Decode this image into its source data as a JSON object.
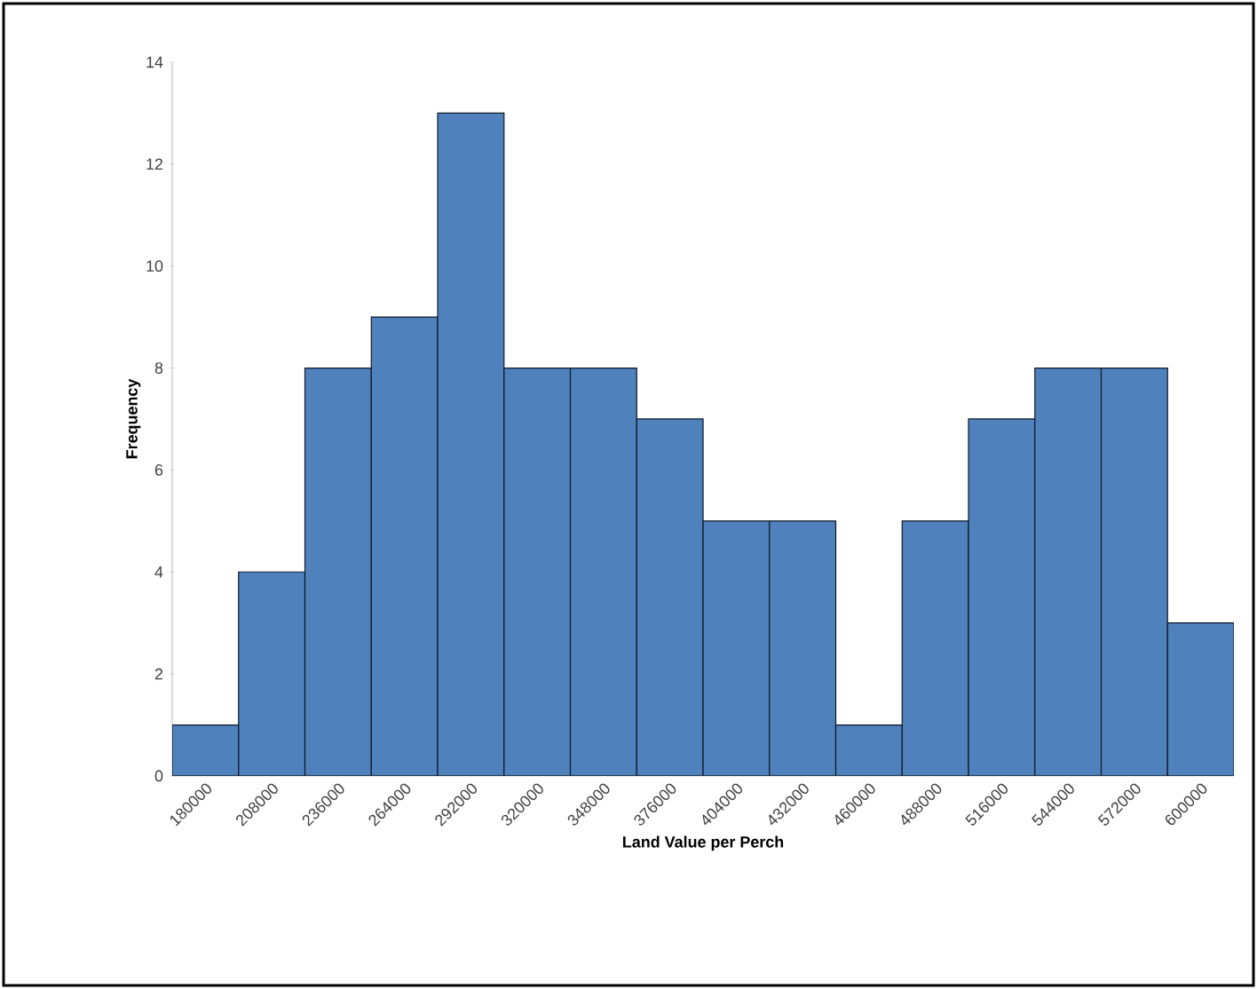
{
  "chart_data": {
    "type": "bar",
    "xlabel": "Land Value per Perch",
    "ylabel": "Frequency",
    "categories": [
      "180000",
      "208000",
      "236000",
      "264000",
      "292000",
      "320000",
      "348000",
      "376000",
      "404000",
      "432000",
      "460000",
      "488000",
      "516000",
      "544000",
      "572000",
      "600000"
    ],
    "values": [
      1,
      4,
      8,
      9,
      13,
      8,
      8,
      7,
      5,
      5,
      1,
      5,
      7,
      8,
      8,
      3
    ],
    "color": "#4f81bd",
    "ylim": [
      0,
      14
    ],
    "yticks": [
      0,
      2,
      4,
      6,
      8,
      10,
      12,
      14
    ]
  }
}
